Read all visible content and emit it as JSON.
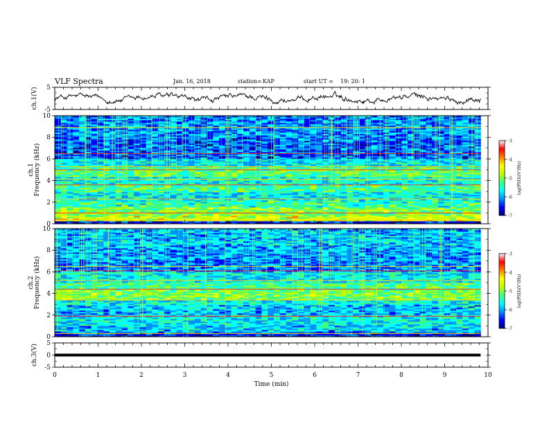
{
  "header": {
    "title": "VLF Spectra",
    "date": "Jan. 16, 2018",
    "station_label": "station=",
    "station": "KAP",
    "start_label": "start UT =",
    "start_time": "19: 20: 1"
  },
  "colors": {
    "colormap": [
      "#000080",
      "#0000ff",
      "#0090ff",
      "#00ffff",
      "#40ff80",
      "#c0ff00",
      "#ffff00",
      "#ff8000",
      "#ff0000",
      "#ffffff"
    ],
    "waveform": "#000000",
    "background": "#ffffff"
  },
  "chart_data": [
    {
      "type": "line",
      "panel": "ch1-waveform",
      "ylabel": "ch.1(V)",
      "ylim": [
        -5,
        5
      ],
      "yticks": [
        "5",
        "-5"
      ],
      "xlim": [
        0,
        10
      ],
      "duration_min": 9.83,
      "description_values": "noisy waveform oscillating roughly between -3 and +3 V"
    },
    {
      "type": "heatmap",
      "panel": "ch1-spectrogram",
      "ylabel_lines": [
        "ch.1",
        "Frequency (kHz)"
      ],
      "ylim": [
        0,
        10
      ],
      "yticks": [
        "0",
        "2",
        "4",
        "6",
        "8",
        "10"
      ],
      "xlim": [
        0,
        10
      ],
      "duration_min": 9.83,
      "colorbar": {
        "label": "log(PSD)(V²/Hz)",
        "range": [
          -7,
          -3
        ],
        "ticks": [
          "-3",
          "-4",
          "-5",
          "-6",
          "-7"
        ]
      },
      "band_levels": [
        [
          0.0,
          0.25,
          -6.6
        ],
        [
          0.25,
          0.8,
          -4.6
        ],
        [
          0.8,
          1.5,
          -5.0
        ],
        [
          1.5,
          2.2,
          -5.4
        ],
        [
          2.2,
          3.0,
          -5.7
        ],
        [
          3.0,
          3.6,
          -5.3
        ],
        [
          3.6,
          4.4,
          -5.6
        ],
        [
          4.4,
          5.2,
          -5.2
        ],
        [
          5.2,
          6.0,
          -5.8
        ],
        [
          6.0,
          8.0,
          -6.3
        ],
        [
          8.0,
          10.0,
          -6.1
        ]
      ],
      "lines_khz": [
        0.35,
        1.0,
        2.3,
        3.6,
        4.1,
        5.0,
        5.3,
        6.5,
        8.9
      ]
    },
    {
      "type": "heatmap",
      "panel": "ch2-spectrogram",
      "ylabel_lines": [
        "ch.2",
        "Frequency (kHz)"
      ],
      "ylim": [
        0,
        10
      ],
      "yticks": [
        "0",
        "2",
        "4",
        "6",
        "8",
        "10"
      ],
      "xlim": [
        0,
        10
      ],
      "duration_min": 9.83,
      "colorbar": {
        "label": "log(PSD)(V²/Hz)",
        "range": [
          -7,
          -3
        ],
        "ticks": [
          "-3",
          "-4",
          "-5",
          "-6",
          "-7"
        ]
      },
      "band_levels": [
        [
          0.0,
          0.4,
          -6.5
        ],
        [
          0.4,
          1.0,
          -5.9
        ],
        [
          1.0,
          2.0,
          -5.7
        ],
        [
          2.0,
          3.0,
          -5.9
        ],
        [
          3.0,
          3.5,
          -5.6
        ],
        [
          3.5,
          4.3,
          -5.0
        ],
        [
          4.3,
          5.0,
          -5.3
        ],
        [
          5.0,
          6.0,
          -5.7
        ],
        [
          6.0,
          7.0,
          -6.2
        ],
        [
          7.0,
          8.5,
          -6.0
        ],
        [
          8.5,
          10.0,
          -5.9
        ]
      ],
      "lines_khz": [
        0.3,
        1.9,
        3.4,
        4.4,
        5.2,
        6.1,
        6.5
      ]
    },
    {
      "type": "line",
      "panel": "ch3-waveform",
      "ylabel": "ch.3(V)",
      "ylim": [
        -5,
        5
      ],
      "yticks": [
        "5",
        "0",
        "-5"
      ],
      "xlim": [
        0,
        10
      ],
      "duration_min": 9.83,
      "constant_value": 0,
      "xlabel": "Time (min)",
      "xticks": [
        "0",
        "1",
        "2",
        "3",
        "4",
        "5",
        "6",
        "7",
        "8",
        "9",
        "10"
      ]
    }
  ]
}
